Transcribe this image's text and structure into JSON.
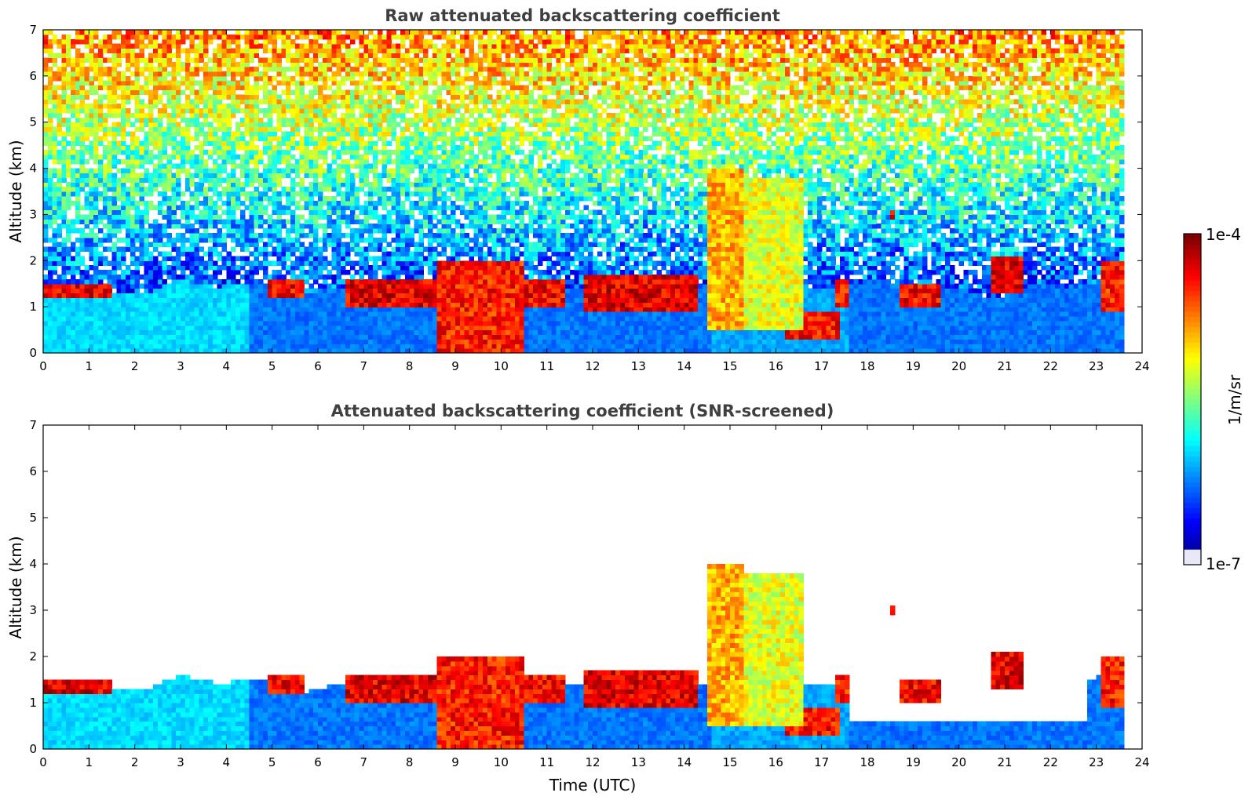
{
  "colors": {
    "jet": [
      "#00007f",
      "#0000ff",
      "#007fff",
      "#00ffff",
      "#7fff7f",
      "#ffff00",
      "#ff7f00",
      "#ff0000",
      "#7f0000"
    ],
    "lowest": "#e8e8f8"
  },
  "chart_data": [
    {
      "type": "heatmap",
      "id": "raw",
      "title": "Raw attenuated backscattering coefficient",
      "xlabel": "",
      "ylabel": "Altitude (km)",
      "xlim": [
        0,
        24
      ],
      "ylim": [
        0,
        7
      ],
      "xticks": [
        0,
        1,
        2,
        3,
        4,
        5,
        6,
        7,
        8,
        9,
        10,
        11,
        12,
        13,
        14,
        15,
        16,
        17,
        18,
        19,
        20,
        21,
        22,
        23,
        24
      ],
      "yticks": [
        0,
        1,
        2,
        3,
        4,
        5,
        6,
        7
      ],
      "data_end_hour": 23.6,
      "boundary_layer_top_km": 1.4,
      "features": [
        {
          "kind": "cloud",
          "t0": 0.0,
          "t1": 1.5,
          "z0": 1.25,
          "z1": 1.5,
          "level": 0.9
        },
        {
          "kind": "cloud",
          "t0": 4.9,
          "t1": 5.7,
          "z0": 1.2,
          "z1": 1.6,
          "level": 0.88
        },
        {
          "kind": "cloud",
          "t0": 6.6,
          "t1": 8.6,
          "z0": 1.0,
          "z1": 1.6,
          "level": 0.9
        },
        {
          "kind": "cloud",
          "t0": 8.6,
          "t1": 10.5,
          "z0": 0.0,
          "z1": 2.0,
          "level": 0.85
        },
        {
          "kind": "cloud",
          "t0": 10.3,
          "t1": 11.4,
          "z0": 1.0,
          "z1": 1.6,
          "level": 0.88
        },
        {
          "kind": "cloud",
          "t0": 11.8,
          "t1": 14.3,
          "z0": 0.9,
          "z1": 1.7,
          "level": 0.9
        },
        {
          "kind": "plume",
          "t0": 14.5,
          "t1": 15.3,
          "z0": 0.5,
          "z1": 4.0,
          "level": 0.7
        },
        {
          "kind": "plume",
          "t0": 15.2,
          "t1": 16.6,
          "z0": 0.5,
          "z1": 3.8,
          "level": 0.6
        },
        {
          "kind": "cloud",
          "t0": 16.2,
          "t1": 17.4,
          "z0": 0.3,
          "z1": 0.9,
          "level": 0.86
        },
        {
          "kind": "cloud",
          "t0": 17.3,
          "t1": 17.6,
          "z0": 1.0,
          "z1": 1.6,
          "level": 0.85
        },
        {
          "kind": "cloud",
          "t0": 18.5,
          "t1": 18.6,
          "z0": 2.9,
          "z1": 3.1,
          "level": 0.9
        },
        {
          "kind": "cloud",
          "t0": 18.7,
          "t1": 19.6,
          "z0": 1.0,
          "z1": 1.5,
          "level": 0.88
        },
        {
          "kind": "cloud",
          "t0": 20.7,
          "t1": 21.4,
          "z0": 1.3,
          "z1": 2.1,
          "level": 0.9
        },
        {
          "kind": "cloud",
          "t0": 23.1,
          "t1": 23.6,
          "z0": 0.9,
          "z1": 2.0,
          "level": 0.85
        }
      ]
    },
    {
      "type": "heatmap",
      "id": "snr",
      "title": "Attenuated backscattering coefficient (SNR-screened)",
      "xlabel": "Time (UTC)",
      "ylabel": "Altitude (km)",
      "xlim": [
        0,
        24
      ],
      "ylim": [
        0,
        7
      ],
      "xticks": [
        0,
        1,
        2,
        3,
        4,
        5,
        6,
        7,
        8,
        9,
        10,
        11,
        12,
        13,
        14,
        15,
        16,
        17,
        18,
        19,
        20,
        21,
        22,
        23,
        24
      ],
      "yticks": [
        0,
        1,
        2,
        3,
        4,
        5,
        6,
        7
      ],
      "data_end_hour": 23.6,
      "boundary_layer_top_km": 1.4
    }
  ],
  "colorbar": {
    "label": "1/m/sr",
    "max_label": "1e-4",
    "min_label": "1e-7",
    "scale": "log",
    "range": [
      1e-07,
      0.0001
    ]
  }
}
